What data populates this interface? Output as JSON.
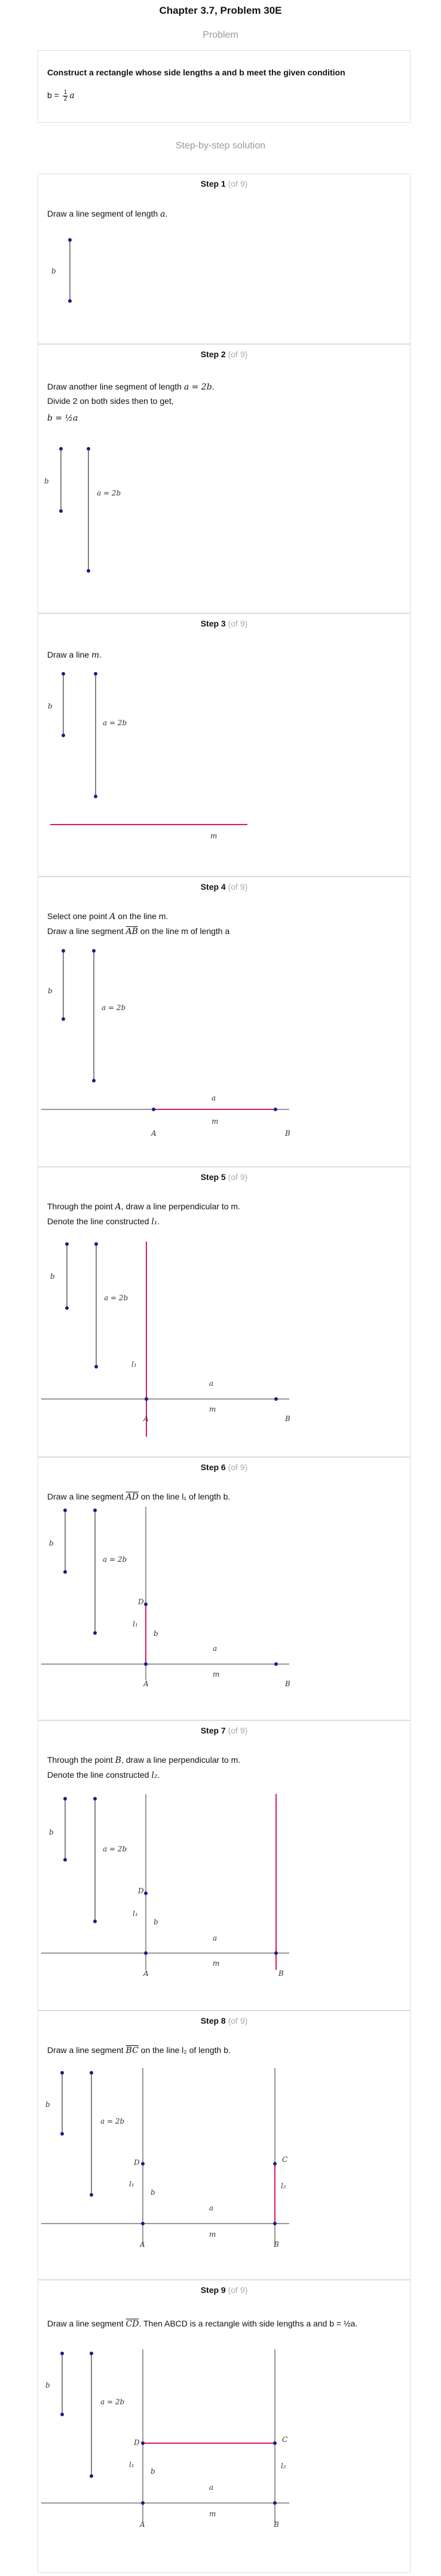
{
  "chapter_title": "Chapter 3.7, Problem 30E",
  "problem_label": "Problem",
  "problem": {
    "statement": "Construct a rectangle whose side lengths a and b meet the given condition",
    "condition_prefix": "b =",
    "condition_num": "1",
    "condition_den": "2",
    "condition_var": "a"
  },
  "solution_label": "Step-by-step solution",
  "steps": [
    {
      "word": "Step 1",
      "of": "(of 9)",
      "lines": [
        {
          "t": "Draw a line segment of length ",
          "m": "a",
          "r": "."
        }
      ]
    },
    {
      "word": "Step 2",
      "of": "(of 9)",
      "lines": [
        {
          "t": "Draw another line segment of length ",
          "m": "a = 2b",
          "r": "."
        },
        {
          "t": "Divide 2 on both sides then to get,",
          "m": "",
          "r": ""
        }
      ],
      "formula": "b = ½a"
    },
    {
      "word": "Step 3",
      "of": "(of 9)",
      "lines": [
        {
          "t": "Draw a line ",
          "m": "m",
          "r": "."
        }
      ]
    },
    {
      "word": "Step 4",
      "of": "(of 9)",
      "lines": [
        {
          "t": "Select one point ",
          "m": "A",
          "r": " on the line m."
        },
        {
          "t": "Draw a line segment ",
          "m": "AB",
          "r": " on the line  m of length a"
        }
      ]
    },
    {
      "word": "Step 5",
      "of": "(of 9)",
      "lines": [
        {
          "t": "Through the point ",
          "m": "A",
          "r": ", draw a line perpendicular to m."
        },
        {
          "t": "Denote the line constructed ",
          "m": "l₁",
          "r": "."
        }
      ]
    },
    {
      "word": "Step 6",
      "of": "(of 9)",
      "lines": [
        {
          "t": "Draw a line segment ",
          "m": "AD",
          "r": " on the line  l₁ of length  b."
        }
      ]
    },
    {
      "word": "Step 7",
      "of": "(of 9)",
      "lines": [
        {
          "t": "Through the point ",
          "m": "B",
          "r": ", draw a line perpendicular to m."
        },
        {
          "t": "Denote the line constructed ",
          "m": "l₂",
          "r": "."
        }
      ]
    },
    {
      "word": "Step 8",
      "of": "(of 9)",
      "lines": [
        {
          "t": "Draw a line segment ",
          "m": "BC",
          "r": " on the line  l₂ of length  b."
        }
      ]
    },
    {
      "word": "Step 9",
      "of": "(of 9)",
      "lines": [
        {
          "t": "Draw a line segment ",
          "m": "CD",
          "r": ". Then ABCD is a rectangle with side lengths a and b = ½a."
        }
      ]
    }
  ],
  "labels": {
    "b": "b",
    "a2b": "a = 2b",
    "m": "m",
    "a": "a",
    "A": "A",
    "B": "B",
    "C": "C",
    "D": "D",
    "l1": "l₁",
    "l2": "l₂"
  },
  "colors": {
    "accent": "#d81b60",
    "point": "#1a1a8c",
    "line": "#333333",
    "muted": "#999999",
    "border": "#dddddd"
  }
}
